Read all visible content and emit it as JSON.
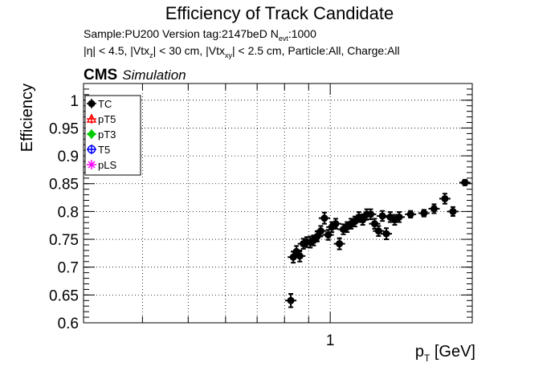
{
  "title": "Efficiency of Track Candidate",
  "subtitle_line1": "Sample:PU200   Version tag:2147beD  N",
  "subtitle_line1_sub": "evt",
  "subtitle_line1_tail": ":1000",
  "subtitle_line2_parts": [
    "|η| < 4.5, |Vtx",
    "z",
    "| < 30 cm, |Vtx",
    "xy",
    "| < 2.5 cm, Particle:All, Charge:All"
  ],
  "cms_label": "CMS",
  "cms_sublabel": "Simulation",
  "colors": {
    "TC": "#000000",
    "pT5": "#ff0000",
    "pT3": "#00cc00",
    "T5": "#0000ff",
    "pLS": "#ff00ff"
  },
  "chart_data": {
    "type": "scatter",
    "title": "Efficiency of Track Candidate",
    "xlabel_main": "p",
    "xlabel_sub": "T",
    "xlabel_tail": " [GeV]",
    "ylabel": "Efficiency",
    "x_scale": "log",
    "xlim": [
      0.3,
      2.0
    ],
    "ylim": [
      0.6,
      1.03
    ],
    "yticks": [
      0.6,
      0.65,
      0.7,
      0.75,
      0.8,
      0.85,
      0.9,
      0.95,
      1
    ],
    "ytick_labels": [
      "0.6",
      "0.65",
      "0.7",
      "0.75",
      "0.8",
      "0.85",
      "0.9",
      "0.95",
      "1"
    ],
    "xticks_labeled": [
      1
    ],
    "xtick_labels": [
      "1"
    ],
    "grid": true,
    "legend_position": "top-left",
    "legend": [
      "TC",
      "pT5",
      "pT3",
      "T5",
      "pLS"
    ],
    "series": [
      {
        "name": "TC",
        "points": [
          {
            "x": 0.825,
            "y": 0.64,
            "err": 0.012
          },
          {
            "x": 0.835,
            "y": 0.718,
            "err": 0.01
          },
          {
            "x": 0.848,
            "y": 0.728,
            "err": 0.01
          },
          {
            "x": 0.862,
            "y": 0.72,
            "err": 0.01
          },
          {
            "x": 0.877,
            "y": 0.742,
            "err": 0.009
          },
          {
            "x": 0.892,
            "y": 0.745,
            "err": 0.009
          },
          {
            "x": 0.907,
            "y": 0.745,
            "err": 0.01
          },
          {
            "x": 0.922,
            "y": 0.748,
            "err": 0.009
          },
          {
            "x": 0.938,
            "y": 0.755,
            "err": 0.009
          },
          {
            "x": 0.955,
            "y": 0.765,
            "err": 0.009
          },
          {
            "x": 0.972,
            "y": 0.788,
            "err": 0.01
          },
          {
            "x": 0.99,
            "y": 0.758,
            "err": 0.009
          },
          {
            "x": 1.008,
            "y": 0.772,
            "err": 0.009
          },
          {
            "x": 1.027,
            "y": 0.778,
            "err": 0.009
          },
          {
            "x": 1.046,
            "y": 0.742,
            "err": 0.01
          },
          {
            "x": 1.066,
            "y": 0.768,
            "err": 0.009
          },
          {
            "x": 1.086,
            "y": 0.772,
            "err": 0.009
          },
          {
            "x": 1.107,
            "y": 0.778,
            "err": 0.009
          },
          {
            "x": 1.128,
            "y": 0.782,
            "err": 0.009
          },
          {
            "x": 1.15,
            "y": 0.79,
            "err": 0.009
          },
          {
            "x": 1.172,
            "y": 0.785,
            "err": 0.009
          },
          {
            "x": 1.195,
            "y": 0.795,
            "err": 0.009
          },
          {
            "x": 1.218,
            "y": 0.795,
            "err": 0.009
          },
          {
            "x": 1.242,
            "y": 0.778,
            "err": 0.009
          },
          {
            "x": 1.266,
            "y": 0.765,
            "err": 0.009
          },
          {
            "x": 1.29,
            "y": 0.792,
            "err": 0.009
          },
          {
            "x": 1.315,
            "y": 0.76,
            "err": 0.01
          },
          {
            "x": 1.34,
            "y": 0.79,
            "err": 0.009
          },
          {
            "x": 1.37,
            "y": 0.785,
            "err": 0.009
          },
          {
            "x": 1.4,
            "y": 0.79,
            "err": 0.009
          },
          {
            "x": 1.48,
            "y": 0.795,
            "err": 0.006
          },
          {
            "x": 1.58,
            "y": 0.797,
            "err": 0.006
          },
          {
            "x": 1.66,
            "y": 0.805,
            "err": 0.008
          },
          {
            "x": 1.75,
            "y": 0.823,
            "err": 0.009
          },
          {
            "x": 1.82,
            "y": 0.8,
            "err": 0.008
          },
          {
            "x": 1.93,
            "y": 0.852,
            "err": 0.005
          }
        ]
      },
      {
        "name": "pT5",
        "points": []
      },
      {
        "name": "pT3",
        "points": []
      },
      {
        "name": "T5",
        "points": []
      },
      {
        "name": "pLS",
        "points": []
      }
    ]
  }
}
